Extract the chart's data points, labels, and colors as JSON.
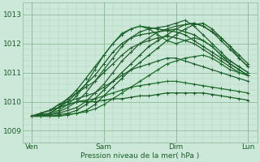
{
  "xlabel": "Pression niveau de la mer( hPa )",
  "bg_color": "#cce8d8",
  "grid_color_minor": "#b0d4bc",
  "grid_color_major": "#90ba9c",
  "line_colors": [
    "#1a5e28",
    "#1e6e2e",
    "#226234",
    "#286030",
    "#1a5c24"
  ],
  "ylim": [
    1008.6,
    1013.4
  ],
  "xlim": [
    -3,
    75
  ],
  "xticks": [
    0,
    24,
    48,
    72
  ],
  "xtick_labels": [
    "Ven",
    "Sam",
    "Dim",
    "Lun"
  ],
  "yticks": [
    1009,
    1010,
    1011,
    1012,
    1013
  ],
  "lines": [
    {
      "x": [
        0,
        3,
        6,
        9,
        12,
        15,
        18,
        21,
        24,
        27,
        30,
        33,
        36,
        39,
        42,
        45,
        48,
        51,
        54,
        57,
        60,
        63,
        66,
        69,
        72
      ],
      "y": [
        1009.5,
        1009.6,
        1009.7,
        1009.8,
        1009.9,
        1010.0,
        1010.0,
        1010.0,
        1010.05,
        1010.1,
        1010.1,
        1010.15,
        1010.2,
        1010.2,
        1010.25,
        1010.3,
        1010.3,
        1010.3,
        1010.3,
        1010.3,
        1010.25,
        1010.2,
        1010.15,
        1010.1,
        1010.05
      ]
    },
    {
      "x": [
        0,
        3,
        6,
        9,
        12,
        15,
        18,
        21,
        24,
        27,
        30,
        33,
        36,
        39,
        42,
        45,
        48,
        51,
        54,
        57,
        60,
        63,
        66,
        69,
        72
      ],
      "y": [
        1009.5,
        1009.6,
        1009.7,
        1009.8,
        1009.9,
        1010.0,
        1010.05,
        1010.1,
        1010.2,
        1010.3,
        1010.4,
        1010.5,
        1010.55,
        1010.6,
        1010.65,
        1010.7,
        1010.7,
        1010.65,
        1010.6,
        1010.55,
        1010.5,
        1010.45,
        1010.4,
        1010.35,
        1010.3
      ]
    },
    {
      "x": [
        0,
        3,
        6,
        9,
        12,
        15,
        18,
        21,
        24,
        27,
        30,
        33,
        36,
        39,
        42,
        45,
        48,
        51,
        54,
        57,
        60,
        63,
        66,
        69,
        72
      ],
      "y": [
        1009.5,
        1009.6,
        1009.7,
        1009.9,
        1010.0,
        1010.1,
        1010.2,
        1010.3,
        1010.5,
        1010.7,
        1010.9,
        1011.1,
        1011.2,
        1011.3,
        1011.4,
        1011.5,
        1011.5,
        1011.4,
        1011.3,
        1011.2,
        1011.1,
        1011.0,
        1010.9,
        1010.8,
        1010.7
      ]
    },
    {
      "x": [
        0,
        3,
        6,
        9,
        12,
        15,
        18,
        21,
        24,
        27,
        30,
        33,
        36,
        39,
        42,
        45,
        48,
        51,
        54,
        57,
        60,
        63,
        66,
        69,
        72
      ],
      "y": [
        1009.5,
        1009.6,
        1009.7,
        1009.9,
        1010.1,
        1010.3,
        1010.5,
        1010.7,
        1011.0,
        1011.3,
        1011.6,
        1011.85,
        1012.0,
        1012.1,
        1012.2,
        1012.25,
        1012.2,
        1012.1,
        1012.0,
        1011.8,
        1011.6,
        1011.4,
        1011.2,
        1011.0,
        1010.9
      ]
    },
    {
      "x": [
        0,
        3,
        6,
        9,
        12,
        15,
        18,
        21,
        24,
        27,
        30,
        33,
        36,
        39,
        42,
        45,
        48,
        51,
        54,
        57,
        60,
        63,
        66,
        69,
        72
      ],
      "y": [
        1009.5,
        1009.55,
        1009.6,
        1009.8,
        1010.0,
        1010.3,
        1010.6,
        1010.9,
        1011.3,
        1011.7,
        1012.0,
        1012.2,
        1012.3,
        1012.35,
        1012.4,
        1012.45,
        1012.5,
        1012.4,
        1012.3,
        1012.1,
        1011.9,
        1011.6,
        1011.3,
        1011.1,
        1010.9
      ]
    },
    {
      "x": [
        0,
        3,
        6,
        9,
        12,
        15,
        18,
        21,
        24,
        27,
        30,
        33,
        36,
        39,
        42,
        45,
        48,
        51,
        54,
        57,
        60,
        63,
        66,
        69,
        72
      ],
      "y": [
        1009.5,
        1009.55,
        1009.6,
        1009.8,
        1010.1,
        1010.4,
        1010.8,
        1011.2,
        1011.6,
        1012.0,
        1012.3,
        1012.5,
        1012.6,
        1012.55,
        1012.5,
        1012.45,
        1012.4,
        1012.3,
        1012.1,
        1011.9,
        1011.7,
        1011.5,
        1011.3,
        1011.1,
        1010.9
      ]
    },
    {
      "x": [
        0,
        3,
        6,
        9,
        12,
        15,
        18,
        21,
        24,
        27,
        30,
        33,
        36,
        39,
        42,
        45,
        48,
        51,
        54,
        57,
        60,
        63,
        66,
        69,
        72
      ],
      "y": [
        1009.5,
        1009.5,
        1009.6,
        1009.7,
        1009.9,
        1010.2,
        1010.6,
        1011.1,
        1011.6,
        1012.0,
        1012.35,
        1012.5,
        1012.6,
        1012.5,
        1012.3,
        1012.1,
        1012.0,
        1012.1,
        1012.2,
        1012.1,
        1011.9,
        1011.6,
        1011.4,
        1011.2,
        1011.0
      ]
    },
    {
      "x": [
        0,
        3,
        6,
        9,
        12,
        15,
        18,
        21,
        24,
        27,
        30,
        33,
        36,
        39,
        42,
        45,
        48,
        51,
        54,
        57,
        60,
        63,
        66,
        69,
        72
      ],
      "y": [
        1009.5,
        1009.5,
        1009.55,
        1009.65,
        1009.8,
        1010.0,
        1010.3,
        1010.7,
        1011.1,
        1011.5,
        1011.9,
        1012.2,
        1012.4,
        1012.5,
        1012.55,
        1012.6,
        1012.7,
        1012.8,
        1012.6,
        1012.3,
        1012.0,
        1011.7,
        1011.4,
        1011.2,
        1011.0
      ]
    },
    {
      "x": [
        0,
        3,
        6,
        9,
        12,
        15,
        18,
        21,
        24,
        27,
        30,
        33,
        36,
        39,
        42,
        45,
        48,
        51,
        54,
        57,
        60,
        63,
        66,
        69,
        72
      ],
      "y": [
        1009.5,
        1009.5,
        1009.55,
        1009.6,
        1009.7,
        1009.8,
        1010.0,
        1010.3,
        1010.6,
        1011.0,
        1011.4,
        1011.7,
        1012.0,
        1012.2,
        1012.4,
        1012.5,
        1012.6,
        1012.65,
        1012.7,
        1012.6,
        1012.4,
        1012.2,
        1011.9,
        1011.5,
        1011.2
      ]
    },
    {
      "x": [
        0,
        3,
        6,
        9,
        12,
        15,
        18,
        21,
        24,
        27,
        30,
        33,
        36,
        39,
        42,
        45,
        48,
        51,
        54,
        57,
        60,
        63,
        66,
        69,
        72
      ],
      "y": [
        1009.5,
        1009.5,
        1009.5,
        1009.55,
        1009.6,
        1009.7,
        1009.9,
        1010.1,
        1010.4,
        1010.7,
        1011.0,
        1011.3,
        1011.6,
        1011.9,
        1012.1,
        1012.3,
        1012.5,
        1012.65,
        1012.7,
        1012.6,
        1012.4,
        1012.1,
        1011.8,
        1011.5,
        1011.2
      ]
    },
    {
      "x": [
        0,
        3,
        6,
        9,
        12,
        15,
        18,
        21,
        24,
        27,
        30,
        33,
        36,
        39,
        42,
        45,
        48,
        51,
        54,
        57,
        60,
        63,
        66,
        69,
        72
      ],
      "y": [
        1009.5,
        1009.5,
        1009.5,
        1009.5,
        1009.55,
        1009.6,
        1009.7,
        1009.9,
        1010.2,
        1010.5,
        1010.8,
        1011.1,
        1011.35,
        1011.6,
        1011.85,
        1012.1,
        1012.3,
        1012.5,
        1012.65,
        1012.7,
        1012.5,
        1012.2,
        1011.9,
        1011.6,
        1011.3
      ]
    },
    {
      "x": [
        0,
        3,
        6,
        9,
        12,
        15,
        18,
        21,
        24,
        27,
        30,
        33,
        36,
        39,
        42,
        45,
        48,
        51,
        54,
        57,
        60,
        63,
        66,
        69,
        72
      ],
      "y": [
        1009.5,
        1009.5,
        1009.5,
        1009.5,
        1009.55,
        1009.6,
        1009.65,
        1009.75,
        1009.9,
        1010.1,
        1010.3,
        1010.5,
        1010.7,
        1010.9,
        1011.1,
        1011.3,
        1011.4,
        1011.5,
        1011.55,
        1011.6,
        1011.5,
        1011.3,
        1011.1,
        1011.0,
        1010.9
      ]
    }
  ]
}
